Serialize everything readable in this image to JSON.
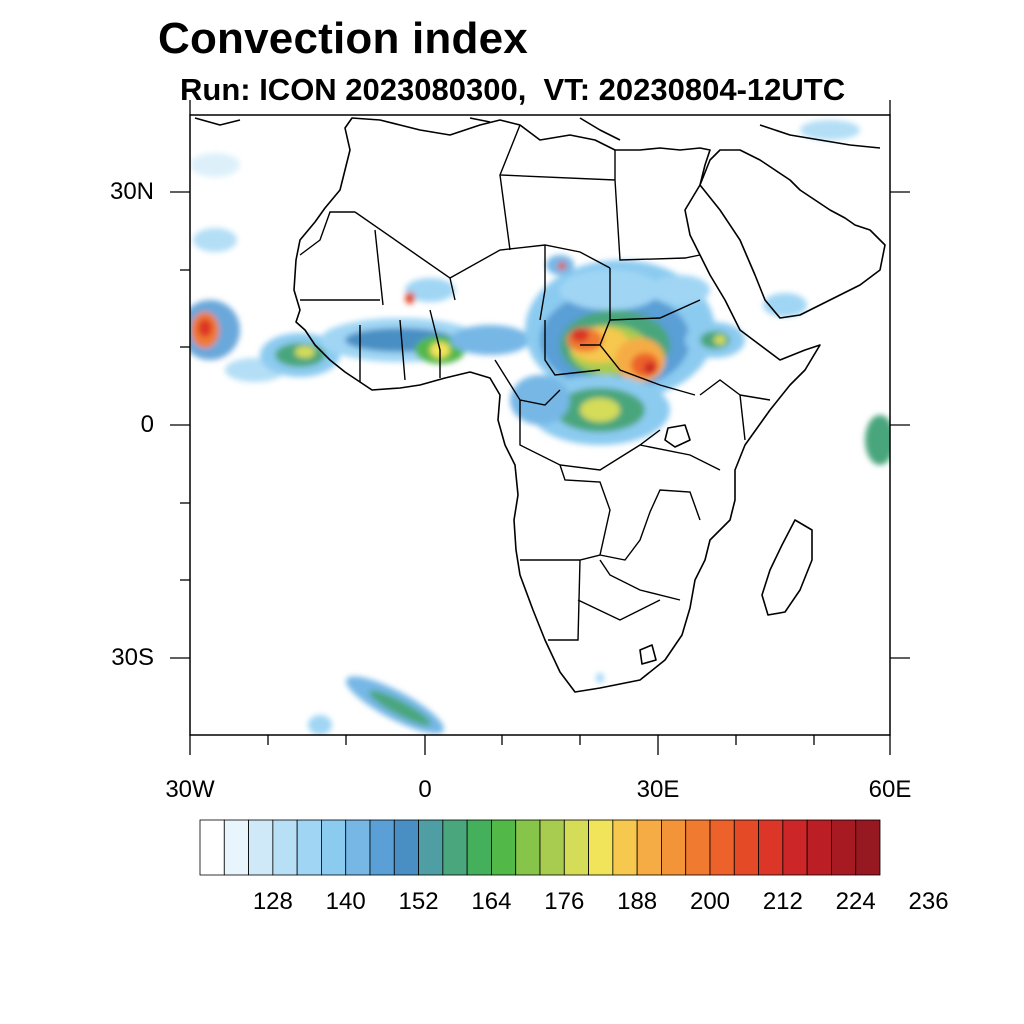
{
  "header": {
    "title": "Convection index",
    "subtitle": "Run: ICON 2023080300,  VT: 20230804-12UTC"
  },
  "map": {
    "lat_labels": [
      "30N",
      "0",
      "30S"
    ],
    "lon_labels": [
      "30W",
      "0",
      "30E",
      "60E"
    ],
    "region": "Africa"
  },
  "colorbar": {
    "tick_labels": [
      "128",
      "140",
      "152",
      "164",
      "176",
      "188",
      "200",
      "212",
      "224",
      "236"
    ],
    "colors": [
      "#ffffff",
      "#e8f5fc",
      "#cfe9f8",
      "#b7e0f6",
      "#a0d6f4",
      "#8ccbf0",
      "#76b7e6",
      "#5a9fd6",
      "#4a8fc4",
      "#4e9ea4",
      "#4aa67c",
      "#44b05c",
      "#52b848",
      "#86c44a",
      "#a8cc50",
      "#d4dc58",
      "#f2e45a",
      "#f6c84e",
      "#f6ac44",
      "#f49438",
      "#f07a30",
      "#ec622a",
      "#e44a26",
      "#dc3628",
      "#cc2628",
      "#bc1e26",
      "#a81a22",
      "#961820"
    ]
  }
}
